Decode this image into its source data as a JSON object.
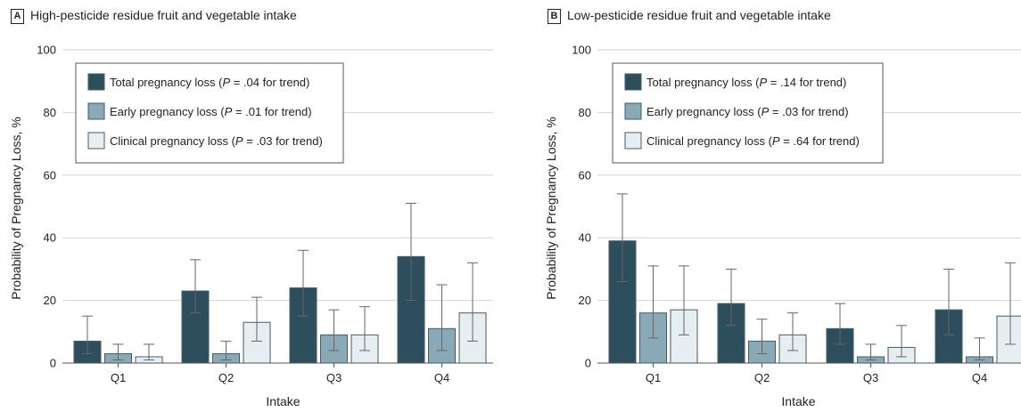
{
  "chart_data": [
    {
      "type": "bar",
      "panel_letter": "A",
      "title": "High-pesticide residue fruit and vegetable intake",
      "xlabel": "Intake",
      "ylabel": "Probability of Pregnancy Loss, %",
      "ylim": [
        0,
        100
      ],
      "yticks": [
        0,
        20,
        40,
        60,
        80,
        100
      ],
      "grid": true,
      "legend_position": "top-left",
      "categories": [
        "Q1",
        "Q2",
        "Q3",
        "Q4"
      ],
      "series": [
        {
          "name": "Total pregnancy loss",
          "p_label": "P",
          "p_text": " = .04 for trend)",
          "color": "#2d4e5c",
          "values": [
            7,
            23,
            24,
            34
          ],
          "err_low": [
            3,
            16,
            15,
            20
          ],
          "err_high": [
            15,
            33,
            36,
            51
          ]
        },
        {
          "name": "Early pregnancy loss",
          "p_label": "P",
          "p_text": " = .01 for trend)",
          "color": "#8aa9b6",
          "values": [
            3,
            3,
            9,
            11
          ],
          "err_low": [
            1,
            1,
            4,
            4
          ],
          "err_high": [
            6,
            7,
            17,
            25
          ]
        },
        {
          "name": "Clinical pregnancy loss",
          "p_label": "P",
          "p_text": " = .03 for trend)",
          "color": "#e6eef1",
          "values": [
            2,
            13,
            9,
            16
          ],
          "err_low": [
            1,
            7,
            4,
            7
          ],
          "err_high": [
            6,
            21,
            18,
            32
          ]
        }
      ]
    },
    {
      "type": "bar",
      "panel_letter": "B",
      "title": "Low-pesticide residue fruit and vegetable intake",
      "xlabel": "Intake",
      "ylabel": "Probability of Pregnancy Loss, %",
      "ylim": [
        0,
        100
      ],
      "yticks": [
        0,
        20,
        40,
        60,
        80,
        100
      ],
      "grid": true,
      "legend_position": "top-left",
      "categories": [
        "Q1",
        "Q2",
        "Q3",
        "Q4"
      ],
      "series": [
        {
          "name": "Total pregnancy loss",
          "p_label": "P",
          "p_text": " = .14 for trend)",
          "color": "#2d4e5c",
          "values": [
            39,
            19,
            11,
            17
          ],
          "err_low": [
            26,
            12,
            6,
            9
          ],
          "err_high": [
            54,
            30,
            19,
            30
          ]
        },
        {
          "name": "Early pregnancy loss",
          "p_label": "P",
          "p_text": " = .03 for trend)",
          "color": "#8aa9b6",
          "values": [
            16,
            7,
            2,
            2
          ],
          "err_low": [
            8,
            3,
            1,
            1
          ],
          "err_high": [
            31,
            14,
            6,
            8
          ]
        },
        {
          "name": "Clinical pregnancy loss",
          "p_label": "P",
          "p_text": " = .64 for trend)",
          "color": "#e6eef1",
          "values": [
            17,
            9,
            5,
            15
          ],
          "err_low": [
            9,
            4,
            2,
            6
          ],
          "err_high": [
            31,
            16,
            12,
            32
          ]
        }
      ]
    }
  ]
}
